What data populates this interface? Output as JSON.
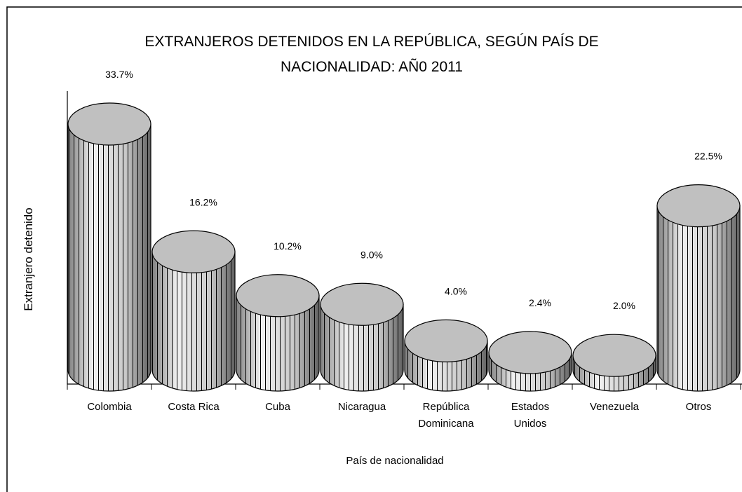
{
  "chart_data": {
    "type": "bar3d-cylinder",
    "title": "EXTRANJEROS DETENIDOS EN LA REPÚBLICA, SEGÚN PAÍS DE\nNACIONALIDAD: AÑ0 2011",
    "x_label": "País de nacionalidad",
    "y_label": "Extranjero detenido",
    "categories": [
      "Colombia",
      "Costa Rica",
      "Cuba",
      "Nicaragua",
      "República\nDominicana",
      "Estados\nUnidos",
      "Venezuela",
      "Otros"
    ],
    "values": [
      33.7,
      16.2,
      10.2,
      9.0,
      4.0,
      2.4,
      2.0,
      22.5
    ],
    "value_labels": [
      "33.7%",
      "16.2%",
      "10.2%",
      "9.0%",
      "4.0%",
      "2.4%",
      "2.0%",
      "22.5%"
    ],
    "color": "#c0c0c0"
  }
}
